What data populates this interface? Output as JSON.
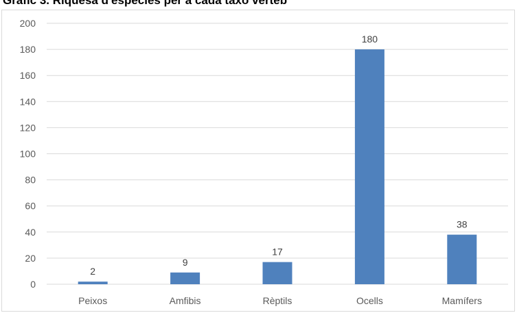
{
  "chart_data": {
    "type": "bar",
    "title": "Gràfic 3. Riquesa d'espècies per a cada taxó verteb",
    "xlabel": "",
    "ylabel": "",
    "categories": [
      "Peixos",
      "Amfibis",
      "Rèptils",
      "Ocells",
      "Mamífers"
    ],
    "values": [
      2,
      9,
      17,
      180,
      38
    ],
    "ylim": [
      0,
      200
    ],
    "yticks": [
      0,
      20,
      40,
      60,
      80,
      100,
      120,
      140,
      160,
      180,
      200
    ],
    "grid": true,
    "data_labels": true,
    "bar_color": "#4f81bd",
    "grid_color": "#d9d9d9"
  }
}
